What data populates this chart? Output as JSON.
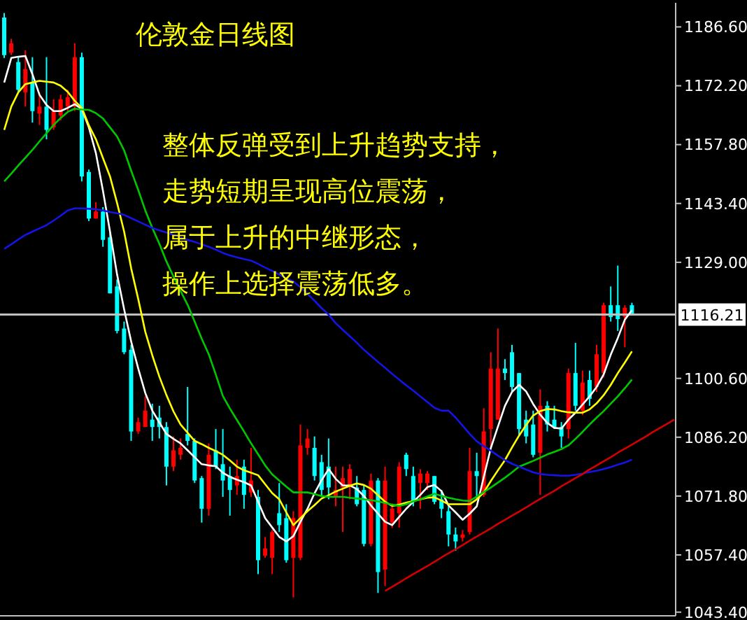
{
  "chart_data": {
    "type": "candlestick",
    "title": "伦敦金日线图",
    "annotations": [
      "整体反弹受到上升趋势支持，",
      "走势短期呈现高位震荡，",
      "属于上升的中继形态，",
      "操作上选择震荡低多。"
    ],
    "categories": [
      null,
      null,
      null,
      null,
      null,
      null,
      null,
      null,
      null,
      null,
      null,
      null,
      null,
      null,
      null,
      null,
      null,
      null,
      null,
      null,
      null,
      null,
      null,
      null,
      null,
      null,
      null,
      null,
      null,
      null,
      null,
      null,
      null,
      null,
      null,
      null,
      null,
      null,
      null,
      null,
      null,
      null,
      null,
      null,
      null,
      null,
      null,
      null,
      null,
      null,
      null,
      null,
      null,
      null,
      null,
      null,
      null,
      null,
      null,
      null,
      null,
      null,
      null,
      null,
      null,
      null,
      null,
      null,
      null,
      null,
      null,
      null,
      null,
      null,
      null,
      null,
      null,
      null,
      null,
      null,
      null,
      null,
      null,
      null,
      null,
      null,
      null,
      null,
      null,
      null,
      null,
      null,
      null,
      null,
      null,
      null
    ],
    "ohlc": [
      [
        1188.9,
        1190,
        1179,
        1179.7
      ],
      [
        1180.3,
        1183.7,
        1179.7,
        1182.6
      ],
      [
        1178,
        1179.2,
        1170.6,
        1171.2
      ],
      [
        1170.6,
        1180.9,
        1167.1,
        1176.3
      ],
      [
        1172.9,
        1179.2,
        1163.2,
        1166
      ],
      [
        1165.4,
        1170.6,
        1162.6,
        1167.1
      ],
      [
        1167.1,
        1179.2,
        1159.1,
        1161.4
      ],
      [
        1162,
        1168.9,
        1161.4,
        1166
      ],
      [
        1164.9,
        1170,
        1163.7,
        1168.9
      ],
      [
        1167.1,
        1171.2,
        1166,
        1169.4
      ],
      [
        1167.1,
        1182.6,
        1166,
        1179.2
      ],
      [
        1179.2,
        1180.3,
        1148.8,
        1150
      ],
      [
        1151.1,
        1151.7,
        1139.1,
        1139.7
      ],
      [
        1139.7,
        1143.7,
        1139.7,
        1141.4
      ],
      [
        1141.4,
        1142.5,
        1132.8,
        1134.5
      ],
      [
        1135.1,
        1136.2,
        1121.4,
        1121.4
      ],
      [
        1123.1,
        1124.8,
        1111.6,
        1112.2
      ],
      [
        1112.8,
        1114.5,
        1106.5,
        1107
      ],
      [
        1107.6,
        1108.8,
        1085.3,
        1087.6
      ],
      [
        1087.6,
        1091,
        1087,
        1089.9
      ],
      [
        1088.7,
        1096.2,
        1088.7,
        1092.7
      ],
      [
        1090.5,
        1094.4,
        1085.3,
        1088.7
      ],
      [
        1091,
        1093.9,
        1085.9,
        1088.7
      ],
      [
        1088.7,
        1089.9,
        1074.4,
        1079
      ],
      [
        1079,
        1086.4,
        1077.9,
        1083
      ],
      [
        1081.9,
        1085.9,
        1080.7,
        1083.6
      ],
      [
        1087,
        1098.5,
        1084.2,
        1085.3
      ],
      [
        1085.3,
        1085.9,
        1075,
        1075.6
      ],
      [
        1076.2,
        1076.7,
        1065.3,
        1068.7
      ],
      [
        1068.7,
        1084.7,
        1067,
        1081.9
      ],
      [
        1083,
        1088.2,
        1078.4,
        1079
      ],
      [
        1079.6,
        1088.2,
        1071.6,
        1075.6
      ],
      [
        1076.7,
        1079,
        1067,
        1073.3
      ],
      [
        1074.4,
        1080.7,
        1072.1,
        1076.7
      ],
      [
        1079,
        1080.7,
        1068.7,
        1072.1
      ],
      [
        1072.7,
        1083.6,
        1071.6,
        1075.6
      ],
      [
        1071.6,
        1073.3,
        1052.7,
        1056.1
      ],
      [
        1057.2,
        1061.8,
        1056.7,
        1059
      ],
      [
        1056.7,
        1063.5,
        1052.7,
        1063
      ],
      [
        1067.6,
        1075,
        1063,
        1064.7
      ],
      [
        1066.4,
        1069.8,
        1055.5,
        1056.1
      ],
      [
        1056.7,
        1068.1,
        1047,
        1066.4
      ],
      [
        1056.7,
        1089.3,
        1056.1,
        1084.2
      ],
      [
        1083.6,
        1088.2,
        1081.9,
        1085.9
      ],
      [
        1083.6,
        1086.4,
        1075.6,
        1076.7
      ],
      [
        1080.1,
        1081.9,
        1071.6,
        1073.3
      ],
      [
        1079,
        1085.9,
        1071,
        1073.9
      ],
      [
        1071.6,
        1079,
        1069.3,
        1073.3
      ],
      [
        1073.9,
        1079,
        1063,
        1076.2
      ],
      [
        1074.4,
        1079.6,
        1071,
        1078.4
      ],
      [
        1073.9,
        1076.7,
        1069.3,
        1069.8
      ],
      [
        1073.3,
        1074.4,
        1059.5,
        1060.1
      ],
      [
        1060.1,
        1077.3,
        1059.5,
        1075.6
      ],
      [
        1075.6,
        1076.2,
        1048.1,
        1053.2
      ],
      [
        1053.8,
        1079,
        1049.8,
        1075.6
      ],
      [
        1065.3,
        1070,
        1064,
        1068.7
      ],
      [
        1067.6,
        1080.1,
        1064.1,
        1079
      ],
      [
        1081.9,
        1082.4,
        1076.7,
        1078.4
      ],
      [
        1076.7,
        1079,
        1069.3,
        1070.4
      ],
      [
        1075,
        1078.4,
        1068.7,
        1077.3
      ],
      [
        1075,
        1077.9,
        1073.3,
        1077.3
      ],
      [
        1076.7,
        1076.7,
        1069.8,
        1070.4
      ],
      [
        1071,
        1073.3,
        1066.4,
        1068.7
      ],
      [
        1068.1,
        1069.3,
        1059.5,
        1062.4
      ],
      [
        1062.4,
        1064.1,
        1058.4,
        1060.7
      ],
      [
        1061.6,
        1063.5,
        1060.7,
        1062.4
      ],
      [
        1063,
        1083.6,
        1062.4,
        1077.9
      ],
      [
        1077.9,
        1082.4,
        1071,
        1076.7
      ],
      [
        1072.1,
        1093.3,
        1071.6,
        1087.6
      ],
      [
        1088.2,
        1107,
        1083.6,
        1103
      ],
      [
        1090.5,
        1112.8,
        1090.5,
        1103
      ],
      [
        1103,
        1105.3,
        1100.2,
        1101.9
      ],
      [
        1107,
        1108.8,
        1097.3,
        1098.5
      ],
      [
        1101.9,
        1101.9,
        1086.4,
        1088.2
      ],
      [
        1090.5,
        1092.7,
        1084.7,
        1086.4
      ],
      [
        1089.3,
        1092.7,
        1081.3,
        1081.9
      ],
      [
        1082.4,
        1097.9,
        1072.1,
        1093.9
      ],
      [
        1093.9,
        1095,
        1087.6,
        1089.3
      ],
      [
        1090.5,
        1093.9,
        1088.2,
        1088.7
      ],
      [
        1088.7,
        1089.9,
        1083.6,
        1086.4
      ],
      [
        1088.2,
        1103,
        1085.9,
        1101.9
      ],
      [
        1101.9,
        1109.3,
        1092.7,
        1093.9
      ],
      [
        1092.7,
        1102.5,
        1091.6,
        1099.6
      ],
      [
        1100.2,
        1102.5,
        1093.9,
        1095.6
      ],
      [
        1098.5,
        1108.8,
        1097.3,
        1106.5
      ],
      [
        1101.9,
        1119.1,
        1100.8,
        1118.5
      ],
      [
        1118.5,
        1123.1,
        1114.5,
        1115.6
      ],
      [
        1118.5,
        1128.2,
        1112.2,
        1115.1
      ],
      [
        1115.6,
        1118.5,
        1108.2,
        1117.9
      ],
      [
        1118.5,
        1119.1,
        1116,
        1116.21
      ],
      null,
      null,
      null,
      null,
      null,
      null
    ],
    "colors": [
      "#00ffff",
      "#ff0000",
      "#00ffff",
      "#ff0000",
      "#00ffff",
      "#ff0000",
      "#00ffff",
      "#ff0000",
      "#ff0000",
      "#ff0000",
      "#ff0000",
      "#00ffff",
      "#00ffff",
      "#ff0000",
      "#00ffff",
      "#00ffff",
      "#00ffff",
      "#00ffff",
      "#00ffff",
      "#ff0000",
      "#ff0000",
      "#00ffff",
      "#00ffff",
      "#00ffff",
      "#ff0000",
      "#ff0000",
      "#00ffff",
      "#00ffff",
      "#00ffff",
      "#ff0000",
      "#00ffff",
      "#00ffff",
      "#00ffff",
      "#ff0000",
      "#00ffff",
      "#ff0000",
      "#00ffff",
      "#ff0000",
      "#ff0000",
      "#00ffff",
      "#00ffff",
      "#ff0000",
      "#ff0000",
      "#ff0000",
      "#00ffff",
      "#00ffff",
      "#00ffff",
      "#ff0000",
      "#ff0000",
      "#ff0000",
      "#00ffff",
      "#00ffff",
      "#ff0000",
      "#00ffff",
      "#ff0000",
      "#ff0000",
      "#ff0000",
      "#00ffff",
      "#00ffff",
      "#ff0000",
      "#ff0000",
      "#00ffff",
      "#00ffff",
      "#00ffff",
      "#00ffff",
      "#ff0000",
      "#ff0000",
      "#00ffff",
      "#ff0000",
      "#ff0000",
      "#ff0000",
      "#00ffff",
      "#00ffff",
      "#00ffff",
      "#00ffff",
      "#00ffff",
      "#ff0000",
      "#00ffff",
      "#00ffff",
      "#00ffff",
      "#ff0000",
      "#00ffff",
      "#ff0000",
      "#00ffff",
      "#ff0000",
      "#ff0000",
      "#00ffff",
      "#00ffff",
      "#ff0000",
      "#00ffff",
      null,
      null,
      null,
      null,
      null,
      null
    ],
    "series": [
      {
        "type": "line",
        "color": "#ffffff",
        "values": [
          1173,
          1179,
          1179.3,
          1179.5,
          1175,
          1170,
          1167.5,
          1166,
          1166,
          1166.8,
          1167.7,
          1166.5,
          1162,
          1155.7,
          1146.5,
          1136.5,
          1126,
          1117.5,
          1109.6,
          1103,
          1097,
          1092.7,
          1089.8,
          1087,
          1085.8,
          1084.7,
          1083,
          1081.3,
          1079.6,
          1079.3,
          1079.1,
          1077.5,
          1076.5,
          1075.8,
          1075.2,
          1074.4,
          1070.4,
          1066.4,
          1064.1,
          1061.8,
          1060.7,
          1062,
          1065.5,
          1068.7,
          1072.5,
          1075.7,
          1078.4,
          1076,
          1074.4,
          1074.4,
          1073.5,
          1071.8,
          1069.5,
          1067.5,
          1065.5,
          1064.7,
          1066.7,
          1068.7,
          1070.4,
          1072.1,
          1074,
          1074.5,
          1073,
          1069.5,
          1067.8,
          1066,
          1067.5,
          1069.3,
          1076.5,
          1083.6,
          1088.8,
          1093.9,
          1097.3,
          1099,
          1097.4,
          1094.3,
          1091.7,
          1089.7,
          1088.5,
          1088.3,
          1090.5,
          1092.2,
          1094.2,
          1096.2,
          1098.5,
          1101.6,
          1106.4,
          1110.5,
          1115,
          1117.3,
          null,
          null,
          null,
          null,
          null,
          null
        ]
      },
      {
        "type": "line",
        "color": "#ffff00",
        "values": [
          1161.4,
          1167.1,
          1170.6,
          1172.6,
          1173,
          1173.4,
          1173.2,
          1173,
          1172.2,
          1170.7,
          1168.5,
          1166.8,
          1162.5,
          1159.1,
          1154.5,
          1150,
          1143.5,
          1136.5,
          1127.5,
          1120,
          1112,
          1106.2,
          1101,
          1096.5,
          1092.5,
          1089.3,
          1087.3,
          1085.3,
          1084.5,
          1083.6,
          1082.8,
          1081.9,
          1080.5,
          1079,
          1078.1,
          1077.5,
          1076.9,
          1074.7,
          1072.5,
          1071,
          1067.8,
          1064.7,
          1066.4,
          1068.1,
          1069.6,
          1071.2,
          1072,
          1072.9,
          1073.6,
          1074.3,
          1074.9,
          1074.5,
          1073.6,
          1072,
          1070.4,
          1069.4,
          1069.7,
          1070.2,
          1070.6,
          1071,
          1071.4,
          1071.5,
          1070.7,
          1069.8,
          1069.8,
          1069.8,
          1069.8,
          1071,
          1072.7,
          1075.5,
          1078.1,
          1080.6,
          1083.7,
          1086.6,
          1089.2,
          1091.5,
          1092.6,
          1093.1,
          1093,
          1092.6,
          1092.3,
          1092.2,
          1092.2,
          1093,
          1094.5,
          1096.5,
          1099,
          1101.9,
          1104.5,
          1107.2,
          null,
          null,
          null,
          null,
          null,
          null
        ]
      },
      {
        "type": "line",
        "color": "#00c800",
        "values": [
          1148.8,
          1150.7,
          1152.7,
          1154.6,
          1156.5,
          1158.6,
          1160.6,
          1162.6,
          1164.3,
          1165.8,
          1166.6,
          1166.4,
          1166.3,
          1165.5,
          1164.2,
          1162,
          1159.8,
          1156.4,
          1151.4,
          1146.7,
          1141.7,
          1137.4,
          1133.5,
          1129.2,
          1125.5,
          1122,
          1118.6,
          1114.5,
          1110.3,
          1106.5,
          1101.5,
          1096.3,
          1093.2,
          1090.4,
          1087.6,
          1084.7,
          1082,
          1079.3,
          1077.1,
          1075.6,
          1074.1,
          1072.7,
          1072.7,
          1072.7,
          1072.3,
          1071.8,
          1071.6,
          1071.6,
          1071.6,
          1071.4,
          1071.2,
          1071,
          1070.8,
          1070.5,
          1070.1,
          1069.7,
          1069.4,
          1069.8,
          1070.5,
          1071,
          1071.7,
          1072.4,
          1071.8,
          1071.4,
          1071,
          1070.7,
          1070.6,
          1071.7,
          1072.8,
          1073.9,
          1075.1,
          1076.3,
          1077.6,
          1079,
          1079.7,
          1080.4,
          1081.2,
          1082,
          1082.6,
          1083.3,
          1084.2,
          1085.8,
          1087.5,
          1089.3,
          1091,
          1092.6,
          1094.4,
          1096.2,
          1098.2,
          1100.3,
          null,
          null,
          null,
          null,
          null,
          null
        ]
      },
      {
        "type": "line",
        "color": "#1414e6",
        "values": [
          1132.3,
          1133.4,
          1134.6,
          1135.7,
          1136.5,
          1137.3,
          1138.1,
          1139.2,
          1140.4,
          1141.7,
          1142.2,
          1142.2,
          1142.1,
          1142,
          1141.7,
          1141.3,
          1141,
          1140.6,
          1139.8,
          1139,
          1138.2,
          1137.4,
          1136.8,
          1136.3,
          1135.7,
          1135.1,
          1134.5,
          1134,
          1133.4,
          1132.8,
          1132.1,
          1131.3,
          1130.7,
          1130.2,
          1129.8,
          1129.4,
          1128.6,
          1127.7,
          1126.9,
          1126,
          1125.1,
          1124.3,
          1122.9,
          1121.3,
          1119.6,
          1117.8,
          1116.2,
          1114.1,
          1112.5,
          1110.9,
          1109.3,
          1107.6,
          1106.1,
          1104.6,
          1103.2,
          1101.7,
          1100.3,
          1098.9,
          1097.6,
          1096.2,
          1094.8,
          1093.4,
          1092.7,
          1092.7,
          1091,
          1089,
          1087,
          1085.2,
          1084,
          1082.9,
          1081.7,
          1080.6,
          1079.7,
          1079,
          1078.3,
          1077.6,
          1077.2,
          1077,
          1076.9,
          1076.8,
          1076.8,
          1077,
          1077.3,
          1077.7,
          1078,
          1078.4,
          1078.9,
          1079.5,
          1080,
          1080.7,
          null,
          null,
          null,
          null,
          null,
          null
        ]
      },
      {
        "type": "line",
        "color": "#d20000",
        "values": [
          null,
          null,
          null,
          null,
          null,
          null,
          null,
          null,
          null,
          null,
          null,
          null,
          null,
          null,
          null,
          null,
          null,
          null,
          null,
          null,
          null,
          null,
          null,
          null,
          null,
          null,
          null,
          null,
          null,
          null,
          null,
          null,
          null,
          null,
          null,
          null,
          null,
          null,
          null,
          null,
          null,
          null,
          null,
          null,
          null,
          null,
          null,
          null,
          null,
          null,
          null,
          null,
          null,
          null,
          1048.6,
          1049.6,
          1050.6,
          1051.7,
          1052.7,
          1053.7,
          1054.7,
          1055.7,
          1056.8,
          1057.8,
          1058.8,
          1059.8,
          1060.9,
          1061.9,
          1062.9,
          1063.9,
          1065,
          1066,
          1067,
          1068,
          1069,
          1070.1,
          1071.1,
          1072.1,
          1073.1,
          1074.2,
          1075.2,
          1076.2,
          1077.2,
          1078.3,
          1079.3,
          1080.3,
          1081.3,
          1082.4,
          1083.4,
          1084.4,
          1085.4,
          1086.4,
          1087.5,
          1088.5,
          1089.5,
          1090.5
        ]
      }
    ],
    "ref_lines": [
      {
        "axis": "y",
        "value": 1116.21,
        "label": "1116.21",
        "color": "#c0c0c0"
      }
    ],
    "ylim": [
      1042.5,
      1192.5
    ],
    "yticks": [
      {
        "value": 1186.6,
        "label": "1186.60"
      },
      {
        "value": 1172.2,
        "label": "1172.20"
      },
      {
        "value": 1157.8,
        "label": "1157.80"
      },
      {
        "value": 1143.4,
        "label": "1143.40"
      },
      {
        "value": 1129,
        "label": "1129.00"
      },
      {
        "value": 1100.6,
        "label": "1100.60"
      },
      {
        "value": 1086.2,
        "label": "1086.20"
      },
      {
        "value": 1071.8,
        "label": "1071.80"
      },
      {
        "value": 1057.4,
        "label": "1057.40"
      },
      {
        "value": 1043.4,
        "label": "1043.40"
      }
    ],
    "tick_labels": "y",
    "marker": "none"
  }
}
